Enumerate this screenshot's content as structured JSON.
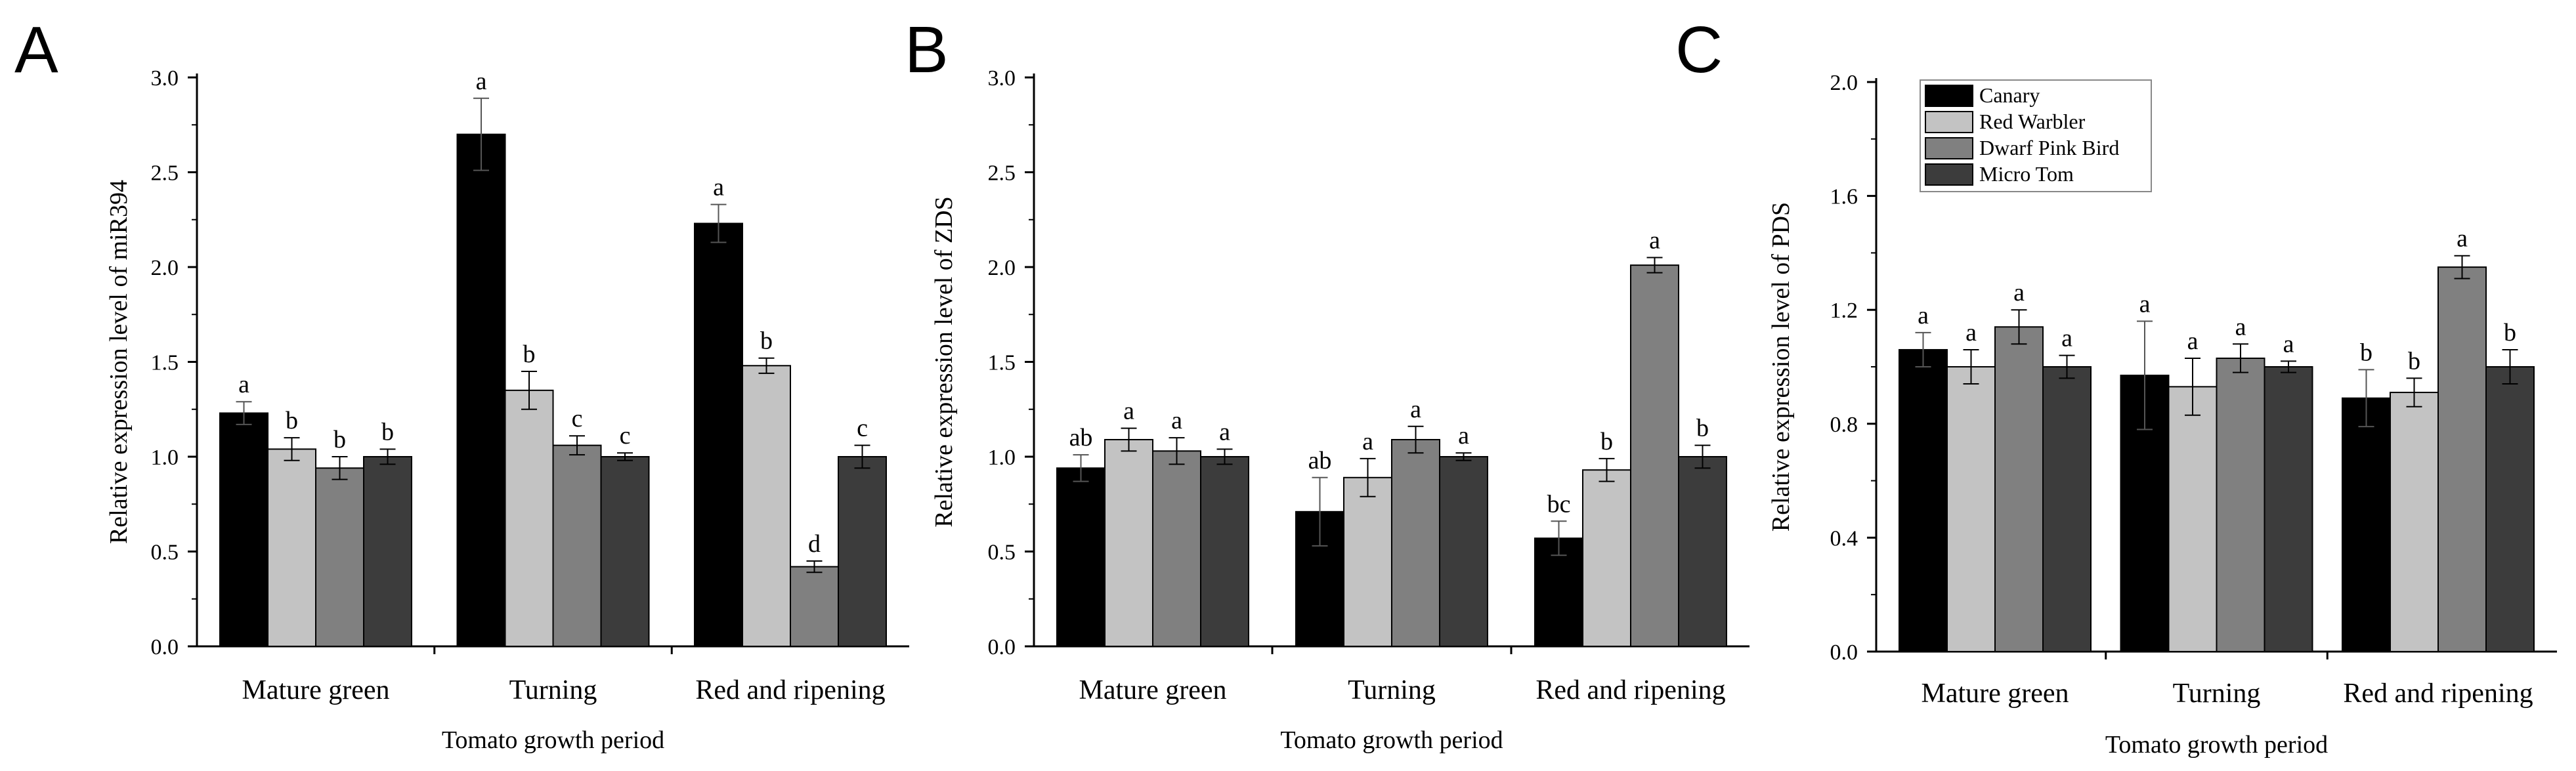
{
  "colors": {
    "Canary": "#000000",
    "Red Warbler": "#c3c3c3",
    "Dwarf Pink Bird": "#808080",
    "Micro Tom": "#3c3c3c"
  },
  "legend_position": "top-left",
  "chart_data": [
    {
      "type": "bar",
      "panel": "A",
      "categories": [
        "Mature green",
        "Turning",
        "Red and ripening"
      ],
      "xlabel": "Tomato growth period",
      "ylabel": "Relative expression level of miR394",
      "ylim": [
        0,
        3.0
      ],
      "yticks": [
        "0.0",
        "0.5",
        "1.0",
        "1.5",
        "2.0",
        "2.5",
        "3.0"
      ],
      "grid": false,
      "series": [
        {
          "name": "Canary",
          "values": [
            1.23,
            2.7,
            2.23
          ],
          "errors": [
            0.06,
            0.19,
            0.1
          ],
          "labels": [
            "a",
            "a",
            "a"
          ]
        },
        {
          "name": "Red Warbler",
          "values": [
            1.04,
            1.35,
            1.48
          ],
          "errors": [
            0.06,
            0.1,
            0.04
          ],
          "labels": [
            "b",
            "b",
            "b"
          ]
        },
        {
          "name": "Dwarf Pink Bird",
          "values": [
            0.94,
            1.06,
            0.42
          ],
          "errors": [
            0.06,
            0.05,
            0.03
          ],
          "labels": [
            "b",
            "c",
            "d"
          ]
        },
        {
          "name": "Micro Tom",
          "values": [
            1.0,
            1.0,
            1.0
          ],
          "errors": [
            0.04,
            0.02,
            0.06
          ],
          "labels": [
            "b",
            "c",
            "c"
          ]
        }
      ]
    },
    {
      "type": "bar",
      "panel": "B",
      "categories": [
        "Mature green",
        "Turning",
        "Red and ripening"
      ],
      "xlabel": "Tomato growth period",
      "ylabel": "Relative expression level of ZDS",
      "ylim": [
        0,
        3.0
      ],
      "yticks": [
        "0.0",
        "0.5",
        "1.0",
        "1.5",
        "2.0",
        "2.5",
        "3.0"
      ],
      "grid": false,
      "series": [
        {
          "name": "Canary",
          "values": [
            0.94,
            0.71,
            0.57
          ],
          "errors": [
            0.07,
            0.18,
            0.09
          ],
          "labels": [
            "ab",
            "ab",
            "bc"
          ]
        },
        {
          "name": "Red Warbler",
          "values": [
            1.09,
            0.89,
            0.93
          ],
          "errors": [
            0.06,
            0.1,
            0.06
          ],
          "labels": [
            "a",
            "a",
            "b"
          ]
        },
        {
          "name": "Dwarf Pink Bird",
          "values": [
            1.03,
            1.09,
            2.01
          ],
          "errors": [
            0.07,
            0.07,
            0.04
          ],
          "labels": [
            "a",
            "a",
            "a"
          ]
        },
        {
          "name": "Micro Tom",
          "values": [
            1.0,
            1.0,
            1.0
          ],
          "errors": [
            0.04,
            0.02,
            0.06
          ],
          "labels": [
            "a",
            "a",
            "b"
          ]
        }
      ]
    },
    {
      "type": "bar",
      "panel": "C",
      "categories": [
        "Mature green",
        "Turning",
        "Red and ripening"
      ],
      "xlabel": "Tomato growth period",
      "ylabel": "Relative expression level of PDS",
      "ylim": [
        0,
        2.0
      ],
      "yticks": [
        "0.0",
        "0.4",
        "0.8",
        "1.2",
        "1.6",
        "2.0"
      ],
      "grid": false,
      "series": [
        {
          "name": "Canary",
          "values": [
            1.06,
            0.97,
            0.89
          ],
          "errors": [
            0.06,
            0.19,
            0.1
          ],
          "labels": [
            "a",
            "a",
            "b"
          ]
        },
        {
          "name": "Red Warbler",
          "values": [
            1.0,
            0.93,
            0.91
          ],
          "errors": [
            0.06,
            0.1,
            0.05
          ],
          "labels": [
            "a",
            "a",
            "b"
          ]
        },
        {
          "name": "Dwarf Pink Bird",
          "values": [
            1.14,
            1.03,
            1.35
          ],
          "errors": [
            0.06,
            0.05,
            0.04
          ],
          "labels": [
            "a",
            "a",
            "a"
          ]
        },
        {
          "name": "Micro Tom",
          "values": [
            1.0,
            1.0,
            1.0
          ],
          "errors": [
            0.04,
            0.02,
            0.06
          ],
          "labels": [
            "a",
            "a",
            "b"
          ]
        }
      ],
      "legend": [
        "Canary",
        "Red Warbler",
        "Dwarf Pink Bird",
        "Micro Tom"
      ]
    }
  ]
}
